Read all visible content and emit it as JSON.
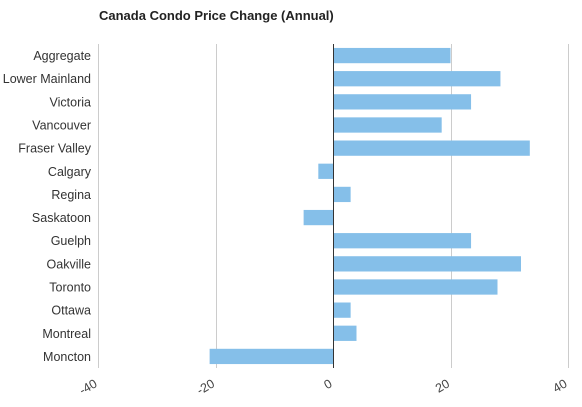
{
  "chart_data": {
    "type": "bar",
    "orientation": "horizontal",
    "title": "Canada Condo Price Change (Annual)",
    "categories": [
      "Aggregate",
      "Lower Mainland",
      "Victoria",
      "Vancouver",
      "Fraser Valley",
      "Calgary",
      "Regina",
      "Saskatoon",
      "Guelph",
      "Oakville",
      "Toronto",
      "Ottawa",
      "Montreal",
      "Moncton"
    ],
    "values": [
      20,
      28.5,
      23.5,
      18.5,
      33.5,
      -2.5,
      3,
      -5,
      23.5,
      32,
      28,
      3,
      4,
      -21
    ],
    "xlim": [
      -40,
      40
    ],
    "xticks": [
      -40,
      -20,
      0,
      20,
      40
    ],
    "grid": true,
    "bar_color": "#85bfe9"
  }
}
